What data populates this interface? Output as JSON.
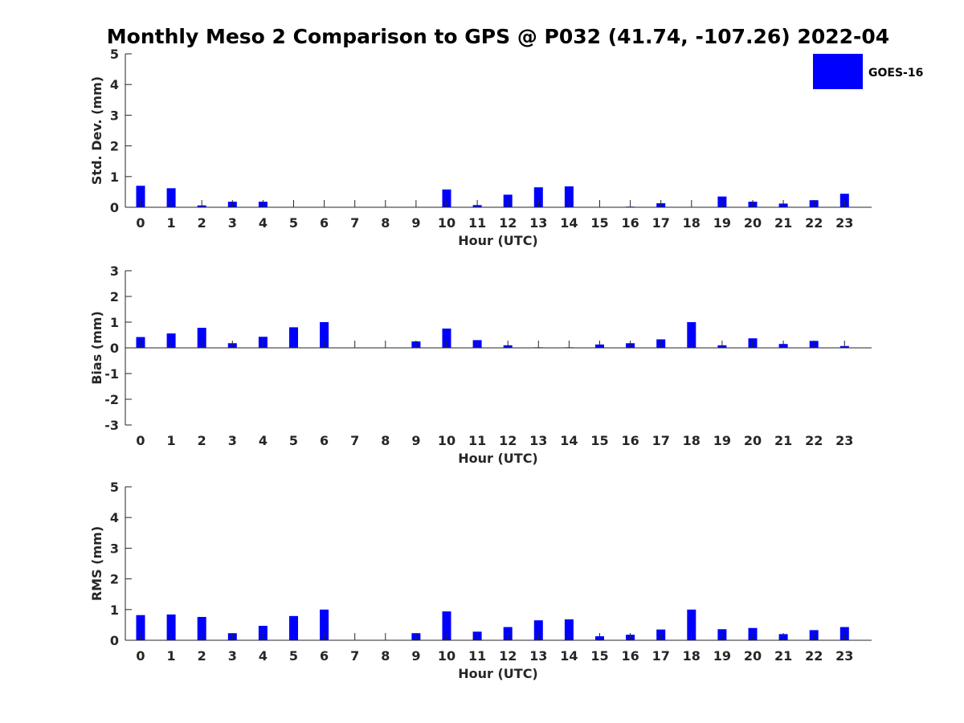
{
  "title": "Monthly Meso 2 Comparison to GPS @ P032 (41.74, -107.26) 2022-04",
  "legend": {
    "label": "GOES-16",
    "position": "top-right"
  },
  "colors": {
    "bar": "#0000ff",
    "axis": "#262626",
    "title": "#000000"
  },
  "chart_data": [
    {
      "type": "bar",
      "categories": [
        "0",
        "1",
        "2",
        "3",
        "4",
        "5",
        "6",
        "7",
        "8",
        "9",
        "10",
        "11",
        "12",
        "13",
        "14",
        "15",
        "16",
        "17",
        "18",
        "19",
        "20",
        "21",
        "22",
        "23"
      ],
      "series": [
        {
          "name": "GOES-16",
          "values": [
            0.7,
            0.62,
            0.06,
            0.18,
            0.18,
            0,
            0,
            0,
            0,
            0,
            0.58,
            0.07,
            0.41,
            0.65,
            0.68,
            0,
            0.02,
            0.13,
            0,
            0.35,
            0.18,
            0.12,
            0.23,
            0.44
          ]
        }
      ],
      "xlabel": "Hour (UTC)",
      "ylabel": "Std. Dev. (mm)",
      "ylim": [
        0,
        5
      ],
      "yticks": [
        "0",
        "1",
        "2",
        "3",
        "4",
        "5"
      ],
      "grid": false,
      "legend": "top-right"
    },
    {
      "type": "bar",
      "categories": [
        "0",
        "1",
        "2",
        "3",
        "4",
        "5",
        "6",
        "7",
        "8",
        "9",
        "10",
        "11",
        "12",
        "13",
        "14",
        "15",
        "16",
        "17",
        "18",
        "19",
        "20",
        "21",
        "22",
        "23"
      ],
      "series": [
        {
          "name": "GOES-16",
          "values": [
            0.42,
            0.56,
            0.78,
            0.18,
            0.43,
            0.8,
            1.0,
            0,
            0,
            0.25,
            0.75,
            0.3,
            0.1,
            0.02,
            0.02,
            0.13,
            0.18,
            0.33,
            1.0,
            0.1,
            0.37,
            0.15,
            0.27,
            0.07
          ]
        }
      ],
      "xlabel": "Hour (UTC)",
      "ylabel": "Bias (mm)",
      "ylim": [
        -3,
        3
      ],
      "yticks": [
        "-3",
        "-2",
        "-1",
        "0",
        "1",
        "2",
        "3"
      ],
      "grid": false
    },
    {
      "type": "bar",
      "categories": [
        "0",
        "1",
        "2",
        "3",
        "4",
        "5",
        "6",
        "7",
        "8",
        "9",
        "10",
        "11",
        "12",
        "13",
        "14",
        "15",
        "16",
        "17",
        "18",
        "19",
        "20",
        "21",
        "22",
        "23"
      ],
      "series": [
        {
          "name": "GOES-16",
          "values": [
            0.82,
            0.84,
            0.76,
            0.23,
            0.47,
            0.79,
            1.0,
            0,
            0,
            0.23,
            0.94,
            0.28,
            0.43,
            0.65,
            0.68,
            0.13,
            0.18,
            0.35,
            1.0,
            0.36,
            0.4,
            0.2,
            0.33,
            0.43
          ]
        }
      ],
      "xlabel": "Hour (UTC)",
      "ylabel": "RMS (mm)",
      "ylim": [
        0,
        5
      ],
      "yticks": [
        "0",
        "1",
        "2",
        "3",
        "4",
        "5"
      ],
      "grid": false
    }
  ]
}
